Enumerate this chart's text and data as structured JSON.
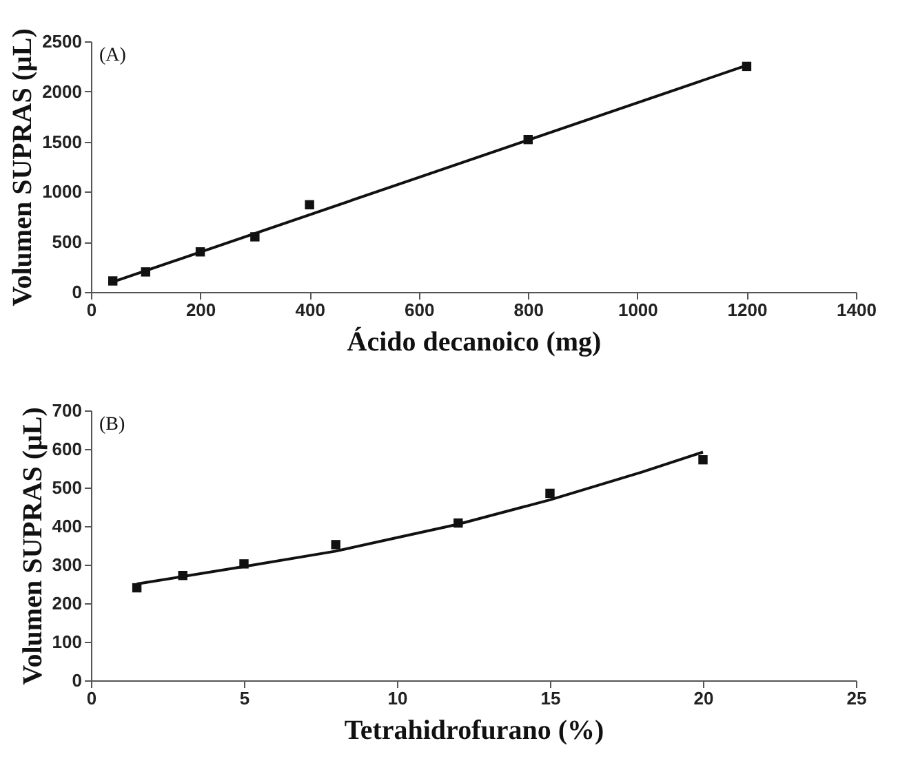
{
  "chart_data": [
    {
      "type": "scatter",
      "xlabel": "Ácido decanoico (mg)",
      "ylabel": "Volumen SUPRAS (μL)",
      "annotations": [
        "(A)"
      ],
      "xlim": [
        0,
        1400
      ],
      "xticks": [
        0,
        200,
        400,
        600,
        800,
        1000,
        1200,
        1400
      ],
      "ylim": [
        0,
        2500
      ],
      "yticks": [
        0,
        500,
        1000,
        1500,
        2000,
        2500
      ],
      "series": [
        {
          "type": "scatter",
          "marker": "square",
          "color": "#111111",
          "x": [
            40,
            100,
            200,
            300,
            400,
            800,
            1200
          ],
          "values": [
            110,
            200,
            400,
            550,
            870,
            1520,
            2250
          ]
        },
        {
          "type": "line",
          "marker": "none",
          "color": "#111111",
          "x": [
            40,
            1200
          ],
          "values": [
            100,
            2260
          ]
        }
      ]
    },
    {
      "type": "scatter",
      "xlabel": "Tetrahidrofurano (%)",
      "ylabel": "Volumen SUPRAS (μL)",
      "annotations": [
        "(B)"
      ],
      "xlim": [
        0,
        25
      ],
      "xticks": [
        0,
        5,
        10,
        15,
        20,
        25
      ],
      "ylim": [
        0,
        700
      ],
      "yticks": [
        0,
        100,
        200,
        300,
        400,
        500,
        600,
        700
      ],
      "series": [
        {
          "type": "scatter",
          "marker": "square",
          "color": "#111111",
          "x": [
            1.5,
            3,
            5,
            8,
            12,
            15,
            20
          ],
          "values": [
            240,
            272,
            302,
            352,
            408,
            485,
            572
          ]
        },
        {
          "type": "line",
          "marker": "none",
          "color": "#111111",
          "x": [
            1.5,
            5,
            8,
            10,
            12,
            15,
            18,
            20
          ],
          "values": [
            250,
            295,
            335,
            370,
            405,
            468,
            540,
            592
          ]
        }
      ]
    }
  ]
}
